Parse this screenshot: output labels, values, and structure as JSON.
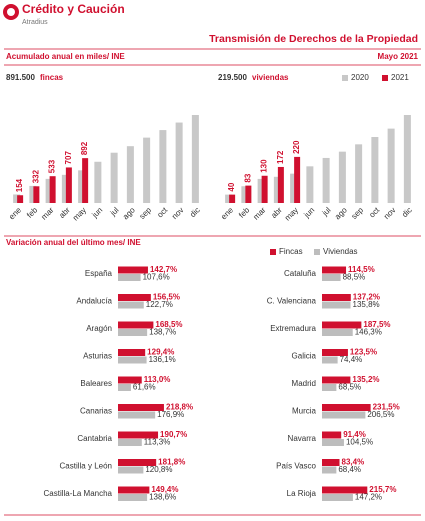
{
  "header": {
    "brand": "Crédito y Caución",
    "sub_brand": "Atradius",
    "title": "Transmisión de Derechos de la Propiedad",
    "section1": "Acumulado anual en miles/ INE",
    "date": "Mayo 2021",
    "section2": "Variación anual del último mes/ INE"
  },
  "chart_data": [
    {
      "type": "bar",
      "total": "891.500",
      "unit": "fincas",
      "categories": [
        "ene",
        "feb",
        "mar",
        "abr",
        "may",
        "jun",
        "jul",
        "ago",
        "sep",
        "oct",
        "nov",
        "dic"
      ],
      "series": [
        {
          "name": "2020",
          "color": "#c8c8c8",
          "values": [
            170,
            340,
            480,
            560,
            650,
            820,
            1000,
            1130,
            1300,
            1450,
            1600,
            1750
          ]
        },
        {
          "name": "2021",
          "color": "#d0102f",
          "values": [
            154,
            332,
            533,
            707,
            892,
            null,
            null,
            null,
            null,
            null,
            null,
            null
          ]
        }
      ]
    },
    {
      "type": "bar",
      "total": "219.500",
      "unit": "viviendas",
      "legend": "upper right",
      "categories": [
        "ene",
        "feb",
        "mar",
        "abr",
        "may",
        "jun",
        "jul",
        "ago",
        "sep",
        "oct",
        "nov",
        "dic"
      ],
      "series": [
        {
          "name": "2020",
          "color": "#c8c8c8",
          "values": [
            40,
            80,
            115,
            125,
            140,
            175,
            215,
            245,
            280,
            315,
            355,
            420
          ]
        },
        {
          "name": "2021",
          "color": "#d0102f",
          "values": [
            40,
            83,
            130,
            172,
            220,
            null,
            null,
            null,
            null,
            null,
            null,
            null
          ]
        }
      ]
    },
    {
      "type": "hbar",
      "legend": "upper right",
      "categories": [
        "España",
        "Andalucía",
        "Aragón",
        "Asturias",
        "Baleares",
        "Canarias",
        "Cantabria",
        "Castilla y León",
        "Castilla-La Mancha",
        "Cataluña",
        "C. Valenciana",
        "Extremadura",
        "Galicia",
        "Madrid",
        "Murcia",
        "Navarra",
        "País Vasco",
        "La Rioja"
      ],
      "series": [
        {
          "name": "Fincas",
          "color": "#d0102f",
          "values": [
            142.7,
            156.5,
            168.5,
            129.4,
            113,
            218.8,
            190.7,
            181.8,
            149.4,
            114.5,
            137.2,
            187.5,
            123.5,
            135.2,
            231.5,
            91.4,
            83.4,
            215.7
          ],
          "value_labels": [
            "142,7%",
            "156,5%",
            "168,5%",
            "129,4%",
            "113,0%",
            "218,8%",
            "190,7%",
            "181,8%",
            "149,4%",
            "114,5%",
            "137,2%",
            "187,5%",
            "123,5%",
            "135,2%",
            "231,5%",
            "91,4%",
            "83,4%",
            "215,7%"
          ]
        },
        {
          "name": "Viviendas",
          "color": "#bdbdbd",
          "values": [
            107.6,
            122.7,
            138.7,
            136.1,
            61.6,
            176.9,
            113.3,
            120.8,
            138.6,
            88.5,
            135.8,
            146.3,
            74.4,
            68.5,
            206.5,
            104.5,
            68.4,
            147.2
          ],
          "value_labels": [
            "107,6%",
            "122,7%",
            "138,7%",
            "136,1%",
            "61,6%",
            "176,9%",
            "113,3%",
            "120,8%",
            "138,6%",
            "88,5%",
            "135,8%",
            "146,3%",
            "74,4%",
            "68,5%",
            "206,5%",
            "104,5%",
            "68,4%",
            "147,2%"
          ]
        }
      ]
    }
  ]
}
